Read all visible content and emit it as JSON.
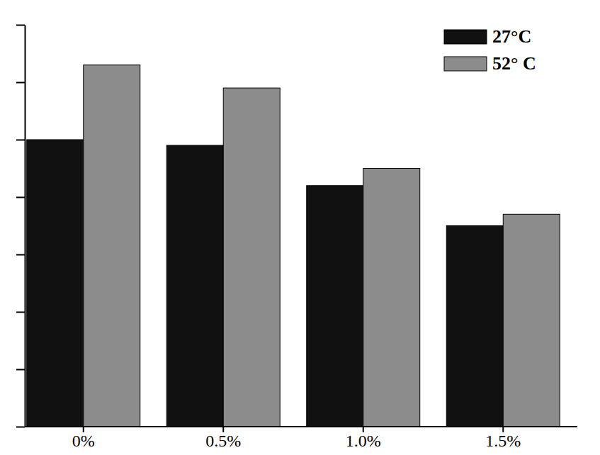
{
  "chart_data": {
    "type": "bar",
    "categories": [
      "0%",
      "0.5%",
      "1.0%",
      "1.5%"
    ],
    "series": [
      {
        "name": "27°C",
        "color": "#111111",
        "values": [
          5.0,
          4.9,
          4.2,
          3.5
        ]
      },
      {
        "name": "52° C",
        "color": "#8c8c8c",
        "values": [
          6.3,
          5.9,
          4.5,
          3.7
        ]
      }
    ],
    "ylim": [
      0,
      7
    ],
    "yticks": [
      0,
      1,
      2,
      3,
      4,
      5,
      6,
      7
    ],
    "legend": "top-right",
    "tick_labels": "x"
  }
}
